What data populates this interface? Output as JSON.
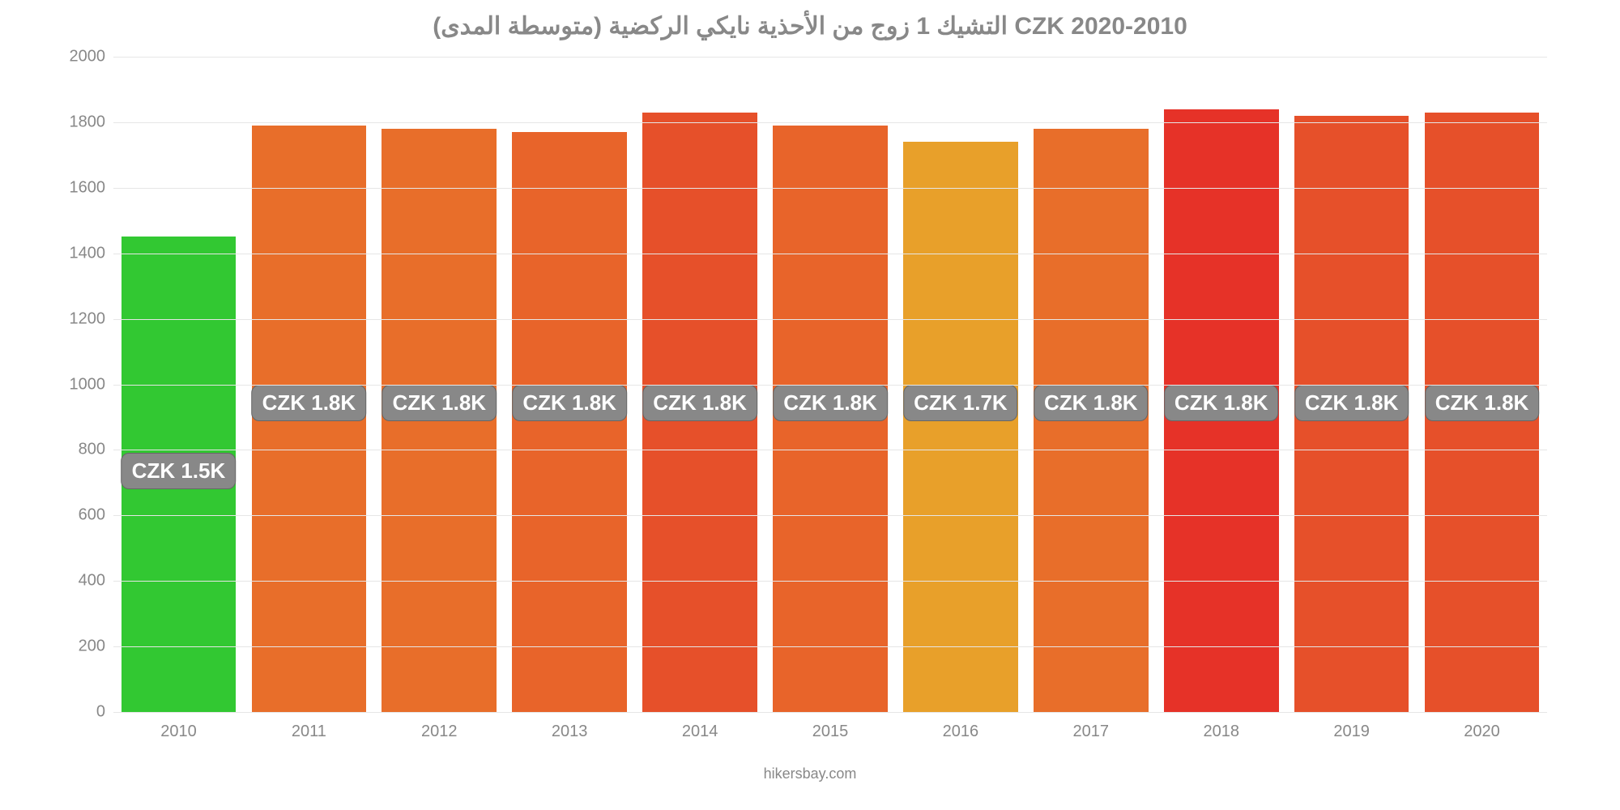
{
  "chart": {
    "type": "bar",
    "title": "التشيك 1 زوج من الأحذية نايكي الركضية (متوسطة المدى) CZK 2020-2010",
    "title_color": "#888888",
    "title_fontsize": 30,
    "credit": "hikersbay.com",
    "credit_color": "#888888",
    "background_color": "#ffffff",
    "grid_color": "#e6e6e6",
    "axis_label_color": "#888888",
    "axis_fontsize": 20,
    "ylim": [
      0,
      2000
    ],
    "ytick_step": 200,
    "yticks": [
      0,
      200,
      400,
      600,
      800,
      1000,
      1200,
      1400,
      1600,
      1800,
      2000
    ],
    "categories": [
      "2010",
      "2011",
      "2012",
      "2013",
      "2014",
      "2015",
      "2016",
      "2017",
      "2018",
      "2019",
      "2020"
    ],
    "values": [
      1450,
      1790,
      1780,
      1770,
      1830,
      1790,
      1740,
      1780,
      1840,
      1820,
      1830
    ],
    "value_labels": [
      "CZK 1.5K",
      "CZK 1.8K",
      "CZK 1.8K",
      "CZK 1.8K",
      "CZK 1.8K",
      "CZK 1.8K",
      "CZK 1.7K",
      "CZK 1.8K",
      "CZK 1.8K",
      "CZK 1.8K",
      "CZK 1.8K"
    ],
    "bar_colors": [
      "#32c832",
      "#e86e2a",
      "#e86e2a",
      "#e8642a",
      "#e6502a",
      "#e8642a",
      "#e8a02a",
      "#e86e2a",
      "#e63228",
      "#e6502a",
      "#e6502a"
    ],
    "bar_width": 0.88,
    "badge_bg": "#888888",
    "badge_text_color": "#ffffff",
    "badge_fontsize": 26,
    "badge_pct_from_top": 0.5,
    "badge_pct_from_top_first": 0.605
  }
}
